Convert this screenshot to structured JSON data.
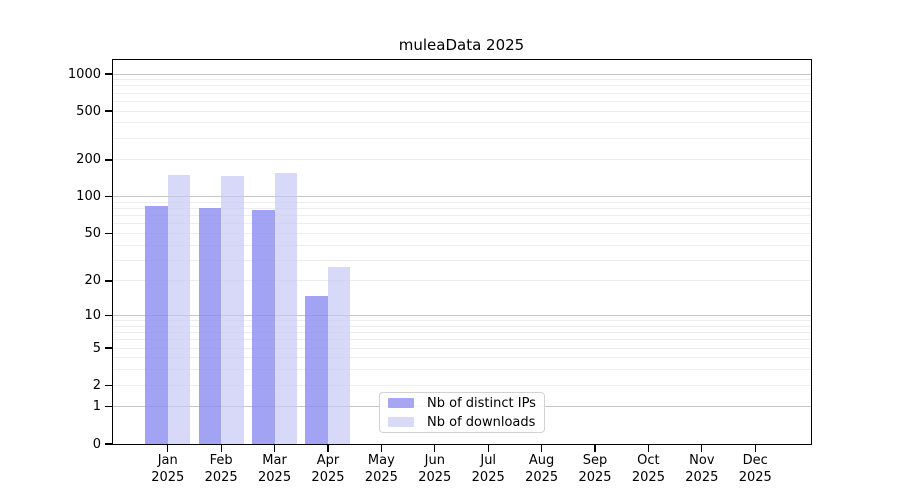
{
  "chart_data": {
    "type": "bar",
    "title": "muleaData 2025",
    "xlabel": "",
    "ylabel": "",
    "categories": [
      "Jan 2025",
      "Feb 2025",
      "Mar 2025",
      "Apr 2025",
      "May 2025",
      "Jun 2025",
      "Jul 2025",
      "Aug 2025",
      "Sep 2025",
      "Oct 2025",
      "Nov 2025",
      "Dec 2025"
    ],
    "series": [
      {
        "key": "distinct-ips",
        "name": "Nb of distinct IPs",
        "color": "#a6a6f2",
        "fill_rgba": "rgba(140,140,240,0.8)",
        "values": [
          84,
          81,
          78,
          15,
          0,
          0,
          0,
          0,
          0,
          0,
          0,
          0
        ]
      },
      {
        "key": "downloads",
        "name": "Nb of downloads",
        "color": "#d9d9f8",
        "fill_rgba": "rgba(200,200,246,0.7)",
        "values": [
          152,
          148,
          158,
          26,
          0,
          0,
          0,
          0,
          0,
          0,
          0,
          0
        ]
      }
    ],
    "yscale": "symlog-log1p",
    "ylim": [
      0,
      1300
    ],
    "y_ticks": [
      0,
      1,
      2,
      5,
      10,
      20,
      50,
      100,
      200,
      500,
      1000
    ],
    "y_gridlines_major": [
      1,
      10,
      100,
      1000
    ],
    "y_gridlines_minor": [
      2,
      3,
      4,
      5,
      6,
      7,
      8,
      9,
      20,
      30,
      40,
      50,
      60,
      70,
      80,
      90,
      200,
      300,
      400,
      500,
      600,
      700,
      800,
      900
    ],
    "grid": true,
    "legend_position": "lower-center"
  }
}
